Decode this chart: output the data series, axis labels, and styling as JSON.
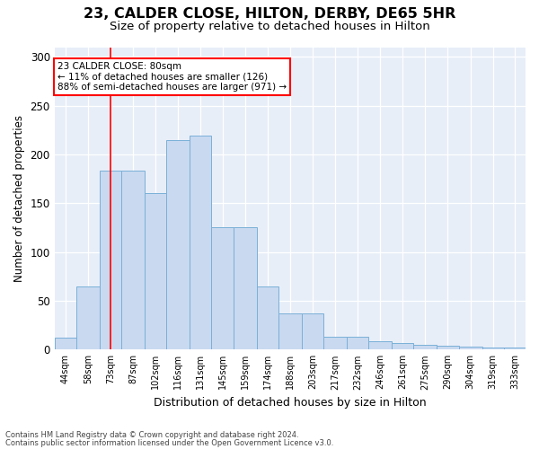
{
  "title1": "23, CALDER CLOSE, HILTON, DERBY, DE65 5HR",
  "title2": "Size of property relative to detached houses in Hilton",
  "xlabel": "Distribution of detached houses by size in Hilton",
  "ylabel": "Number of detached properties",
  "bar_left_edges": [
    44,
    58,
    73,
    87,
    102,
    116,
    131,
    145,
    159,
    174,
    188,
    203,
    217,
    232,
    246,
    261,
    275,
    290,
    304,
    319,
    333
  ],
  "bar_heights": [
    12,
    65,
    183,
    183,
    160,
    215,
    219,
    125,
    125,
    65,
    37,
    37,
    13,
    13,
    9,
    7,
    5,
    4,
    3,
    2,
    2
  ],
  "tick_labels": [
    "44sqm",
    "58sqm",
    "73sqm",
    "87sqm",
    "102sqm",
    "116sqm",
    "131sqm",
    "145sqm",
    "159sqm",
    "174sqm",
    "188sqm",
    "203sqm",
    "217sqm",
    "232sqm",
    "246sqm",
    "261sqm",
    "275sqm",
    "290sqm",
    "304sqm",
    "319sqm",
    "333sqm"
  ],
  "bar_color": "#c9d9f0",
  "bar_edge_color": "#7ab0d8",
  "background_color": "#e8eef8",
  "red_line_x": 80,
  "annotation_text": "23 CALDER CLOSE: 80sqm\n← 11% of detached houses are smaller (126)\n88% of semi-detached houses are larger (971) →",
  "ylim": [
    0,
    310
  ],
  "yticks": [
    0,
    50,
    100,
    150,
    200,
    250,
    300
  ],
  "footer1": "Contains HM Land Registry data © Crown copyright and database right 2024.",
  "footer2": "Contains public sector information licensed under the Open Government Licence v3.0.",
  "title1_fontsize": 11.5,
  "title2_fontsize": 9.5,
  "tick_fontsize": 7,
  "ylabel_fontsize": 8.5,
  "xlabel_fontsize": 9,
  "footer_fontsize": 6,
  "annotation_fontsize": 7.5
}
